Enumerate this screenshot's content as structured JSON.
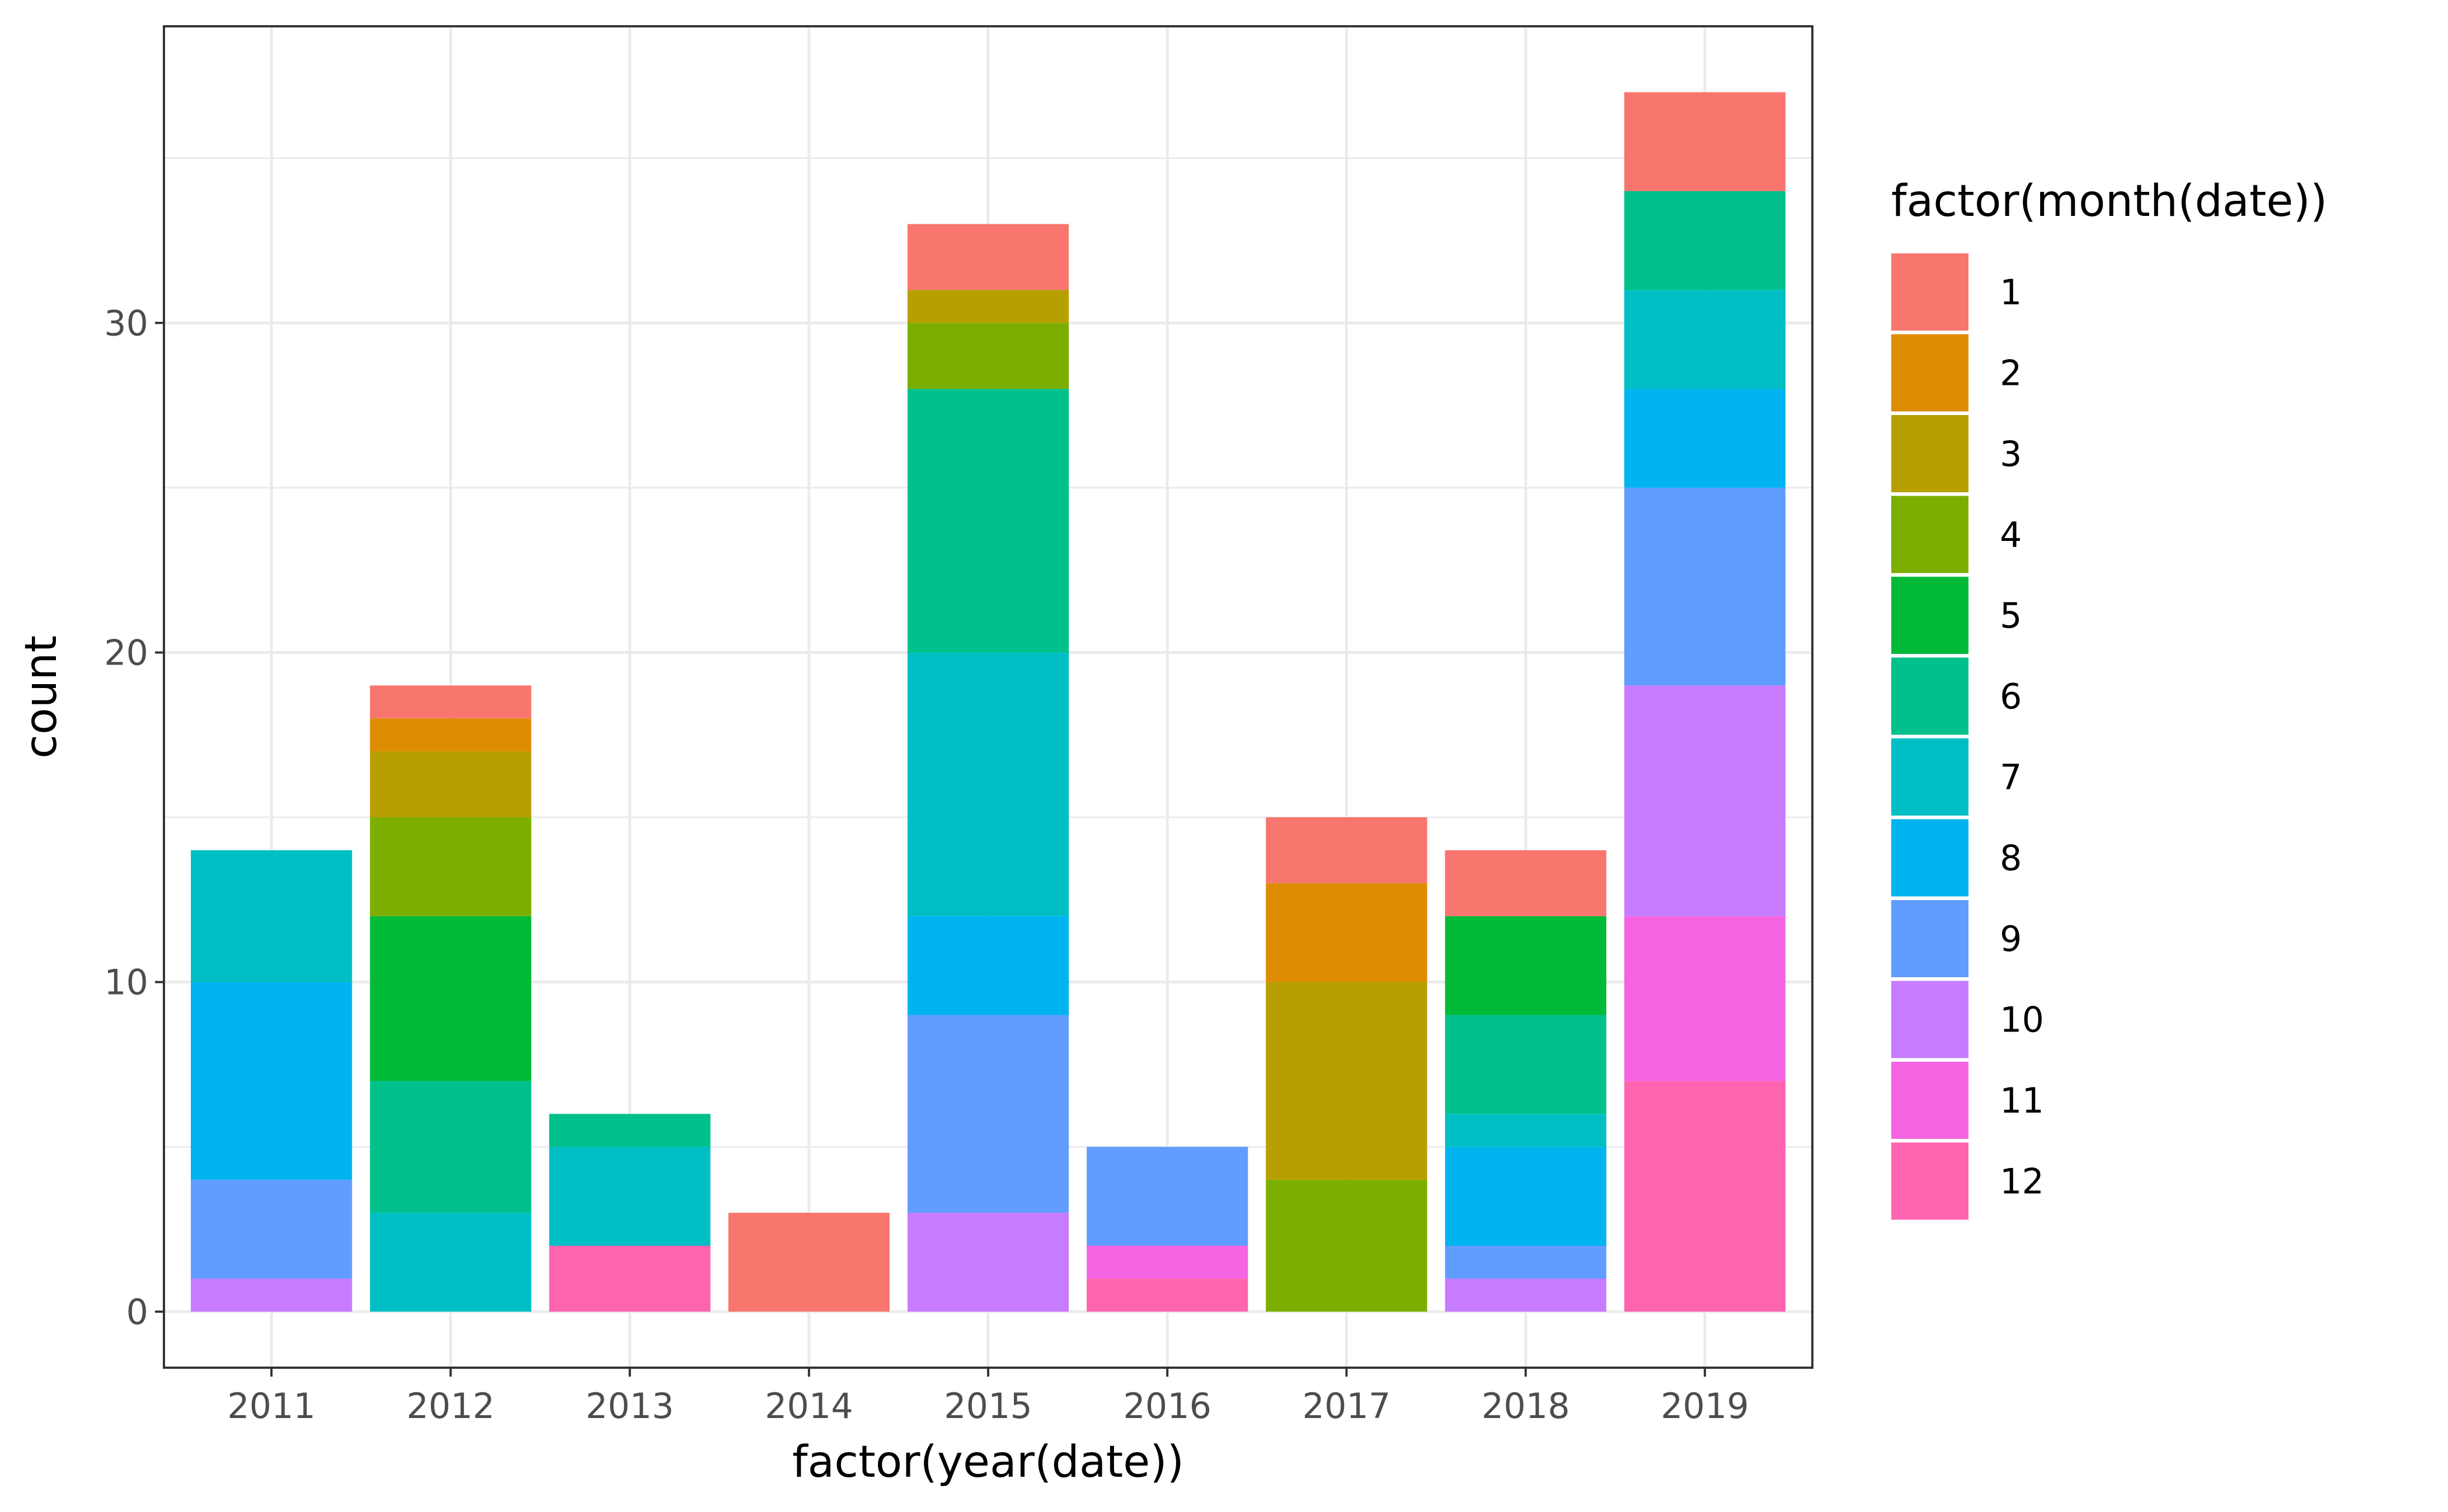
{
  "chart_data": {
    "type": "bar",
    "stacked": true,
    "xlabel": "factor(year(date))",
    "ylabel": "count",
    "categories": [
      "2011",
      "2012",
      "2013",
      "2014",
      "2015",
      "2016",
      "2017",
      "2018",
      "2019"
    ],
    "ylim": [
      -1.7,
      39.0
    ],
    "yticks": [
      0,
      10,
      20,
      30
    ],
    "grid": true,
    "legend": {
      "title": "factor(month(date))",
      "position": "right"
    },
    "series": [
      {
        "name": "1",
        "color": "#F8766D",
        "values": [
          0,
          1,
          0,
          3,
          2,
          0,
          2,
          2,
          3
        ]
      },
      {
        "name": "2",
        "color": "#DE8C00",
        "values": [
          0,
          1,
          0,
          0,
          0,
          0,
          3,
          0,
          0
        ]
      },
      {
        "name": "3",
        "color": "#B79F00",
        "values": [
          0,
          2,
          0,
          0,
          1,
          0,
          6,
          0,
          0
        ]
      },
      {
        "name": "4",
        "color": "#7CAE00",
        "values": [
          0,
          3,
          0,
          0,
          2,
          0,
          4,
          0,
          0
        ]
      },
      {
        "name": "5",
        "color": "#00BA38",
        "values": [
          0,
          5,
          0,
          0,
          0,
          0,
          0,
          3,
          0
        ]
      },
      {
        "name": "6",
        "color": "#00C08B",
        "values": [
          0,
          4,
          1,
          0,
          8,
          0,
          0,
          3,
          3
        ]
      },
      {
        "name": "7",
        "color": "#00BFC4",
        "values": [
          4,
          3,
          3,
          0,
          8,
          0,
          0,
          1,
          3
        ]
      },
      {
        "name": "8",
        "color": "#00B4F0",
        "values": [
          6,
          0,
          0,
          0,
          3,
          0,
          0,
          3,
          3
        ]
      },
      {
        "name": "9",
        "color": "#619CFF",
        "values": [
          3,
          0,
          0,
          0,
          6,
          3,
          0,
          1,
          6
        ]
      },
      {
        "name": "10",
        "color": "#C77CFF",
        "values": [
          1,
          0,
          0,
          0,
          3,
          0,
          0,
          1,
          7
        ]
      },
      {
        "name": "11",
        "color": "#F564E3",
        "values": [
          0,
          0,
          0,
          0,
          0,
          1,
          0,
          0,
          5
        ]
      },
      {
        "name": "12",
        "color": "#FF64B0",
        "values": [
          0,
          0,
          2,
          0,
          0,
          1,
          0,
          0,
          7
        ]
      }
    ]
  }
}
